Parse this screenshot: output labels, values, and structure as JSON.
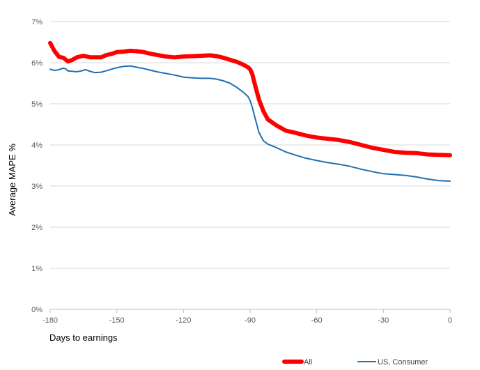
{
  "chart_data": {
    "type": "line",
    "xlabel": "Days to earnings",
    "ylabel": "Average MAPE %",
    "xlim": [
      -180,
      0
    ],
    "ylim": [
      0,
      7
    ],
    "xticks": [
      -180,
      -150,
      -120,
      -90,
      -60,
      -30,
      0
    ],
    "xtick_labels": [
      "-180",
      "-150",
      "-120",
      "-90",
      "-60",
      "-30",
      "0"
    ],
    "yticks": [
      0,
      1,
      2,
      3,
      4,
      5,
      6,
      7
    ],
    "ytick_labels": [
      "0%",
      "1%",
      "2%",
      "3%",
      "4%",
      "5%",
      "6%",
      "7%"
    ],
    "grid": "horizontal",
    "legend_position": "bottom",
    "series": [
      {
        "name": "All",
        "color": "#ff0000",
        "x": [
          -180,
          -178,
          -176,
          -174,
          -172,
          -170,
          -168,
          -165,
          -162,
          -160,
          -157,
          -155,
          -152,
          -150,
          -147,
          -144,
          -141,
          -138,
          -135,
          -132,
          -128,
          -124,
          -120,
          -116,
          -112,
          -108,
          -105,
          -102,
          -99,
          -96,
          -93,
          -91,
          -90,
          -89,
          -88,
          -87,
          -86,
          -84,
          -82,
          -78,
          -74,
          -70,
          -65,
          -60,
          -55,
          -50,
          -45,
          -40,
          -35,
          -30,
          -25,
          -20,
          -15,
          -10,
          -5,
          0
        ],
        "values": [
          6.48,
          6.28,
          6.14,
          6.12,
          6.03,
          6.07,
          6.13,
          6.17,
          6.13,
          6.13,
          6.13,
          6.18,
          6.22,
          6.26,
          6.27,
          6.29,
          6.28,
          6.26,
          6.22,
          6.19,
          6.15,
          6.13,
          6.15,
          6.16,
          6.17,
          6.18,
          6.16,
          6.12,
          6.07,
          6.02,
          5.95,
          5.89,
          5.84,
          5.72,
          5.5,
          5.3,
          5.1,
          4.82,
          4.62,
          4.47,
          4.35,
          4.3,
          4.23,
          4.18,
          4.15,
          4.12,
          4.07,
          4.0,
          3.93,
          3.88,
          3.83,
          3.81,
          3.8,
          3.77,
          3.76,
          3.75
        ]
      },
      {
        "name": "US, Consumer",
        "color": "#1f6fb2",
        "x": [
          -180,
          -178,
          -176,
          -174,
          -173,
          -172,
          -170,
          -168,
          -166,
          -164,
          -162,
          -160,
          -157,
          -155,
          -152,
          -150,
          -147,
          -144,
          -141,
          -138,
          -135,
          -132,
          -128,
          -124,
          -120,
          -116,
          -112,
          -108,
          -105,
          -102,
          -99,
          -96,
          -93,
          -91,
          -90,
          -89,
          -88,
          -87,
          -86,
          -84,
          -82,
          -78,
          -74,
          -70,
          -65,
          -60,
          -55,
          -50,
          -45,
          -40,
          -35,
          -30,
          -25,
          -20,
          -15,
          -10,
          -5,
          0
        ],
        "values": [
          5.84,
          5.81,
          5.83,
          5.87,
          5.85,
          5.8,
          5.79,
          5.78,
          5.8,
          5.83,
          5.79,
          5.76,
          5.77,
          5.8,
          5.85,
          5.88,
          5.91,
          5.92,
          5.89,
          5.86,
          5.82,
          5.78,
          5.74,
          5.7,
          5.65,
          5.63,
          5.62,
          5.62,
          5.6,
          5.56,
          5.5,
          5.4,
          5.28,
          5.18,
          5.08,
          4.91,
          4.7,
          4.5,
          4.3,
          4.1,
          4.02,
          3.93,
          3.83,
          3.76,
          3.68,
          3.62,
          3.57,
          3.53,
          3.48,
          3.41,
          3.35,
          3.3,
          3.28,
          3.26,
          3.22,
          3.17,
          3.13,
          3.12
        ]
      }
    ]
  }
}
